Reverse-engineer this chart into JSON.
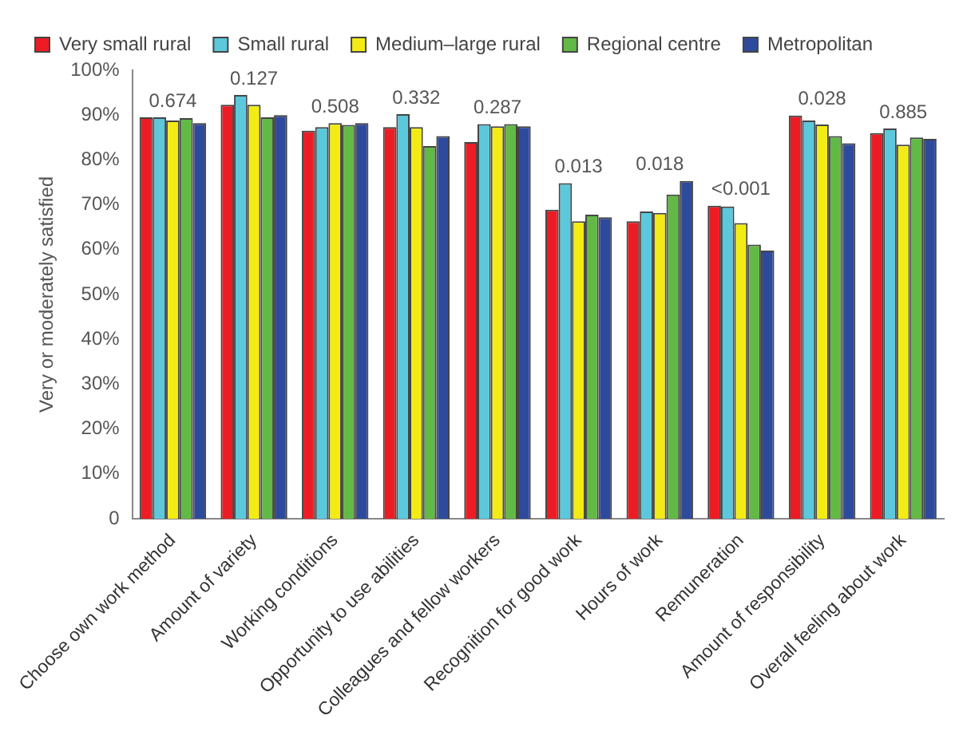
{
  "chart_data": {
    "type": "bar",
    "ylabel": "Very or moderately satisfied",
    "categories": [
      "Choose own work method",
      "Amount of variety",
      "Working conditions",
      "Opportunity to use abilities",
      "Colleagues and fellow workers",
      "Recognition for good work",
      "Hours of work",
      "Remuneration",
      "Amount of responsibility",
      "Overall feeling about work"
    ],
    "series": [
      {
        "name": "Very small rural",
        "color": "#ed1c24",
        "values": [
          89.5,
          92.3,
          86.5,
          87.3,
          84,
          68.9,
          66.3,
          69.8,
          89.9,
          86
        ]
      },
      {
        "name": "Small rural",
        "color": "#5bc8dc",
        "values": [
          89.5,
          94.5,
          87.3,
          90.2,
          88,
          74.8,
          68.5,
          69.6,
          88.8,
          87
        ]
      },
      {
        "name": "Medium–large rural",
        "color": "#f2ec14",
        "values": [
          88.8,
          92.3,
          88.2,
          87.3,
          87.5,
          66.3,
          68.2,
          65.9,
          87.9,
          83.4
        ]
      },
      {
        "name": "Regional centre",
        "color": "#62b946",
        "values": [
          89.3,
          89.5,
          87.8,
          83.1,
          88,
          67.8,
          72.3,
          61.1,
          85.3,
          85
        ]
      },
      {
        "name": "Metropolitan",
        "color": "#2e4a9c",
        "values": [
          88.2,
          90,
          88.2,
          85.3,
          87.5,
          67.2,
          75.3,
          59.8,
          83.7,
          84.7
        ]
      }
    ],
    "ylim": [
      0,
      100
    ],
    "yticks": [
      {
        "value": 0,
        "label": "0"
      },
      {
        "value": 10,
        "label": "10%"
      },
      {
        "value": 20,
        "label": "20%"
      },
      {
        "value": 30,
        "label": "30%"
      },
      {
        "value": 40,
        "label": "40%"
      },
      {
        "value": 50,
        "label": "50%"
      },
      {
        "value": 60,
        "label": "60%"
      },
      {
        "value": 70,
        "label": "70%"
      },
      {
        "value": 80,
        "label": "80%"
      },
      {
        "value": 90,
        "label": "90%"
      },
      {
        "value": 100,
        "label": "100%"
      }
    ],
    "grid": false,
    "legend": "top left",
    "annotations": [
      "0.674",
      "0.127",
      "0.508",
      "0.332",
      "0.287",
      "0.013",
      "0.018",
      "<0.001",
      "0.028",
      "0.885"
    ]
  }
}
